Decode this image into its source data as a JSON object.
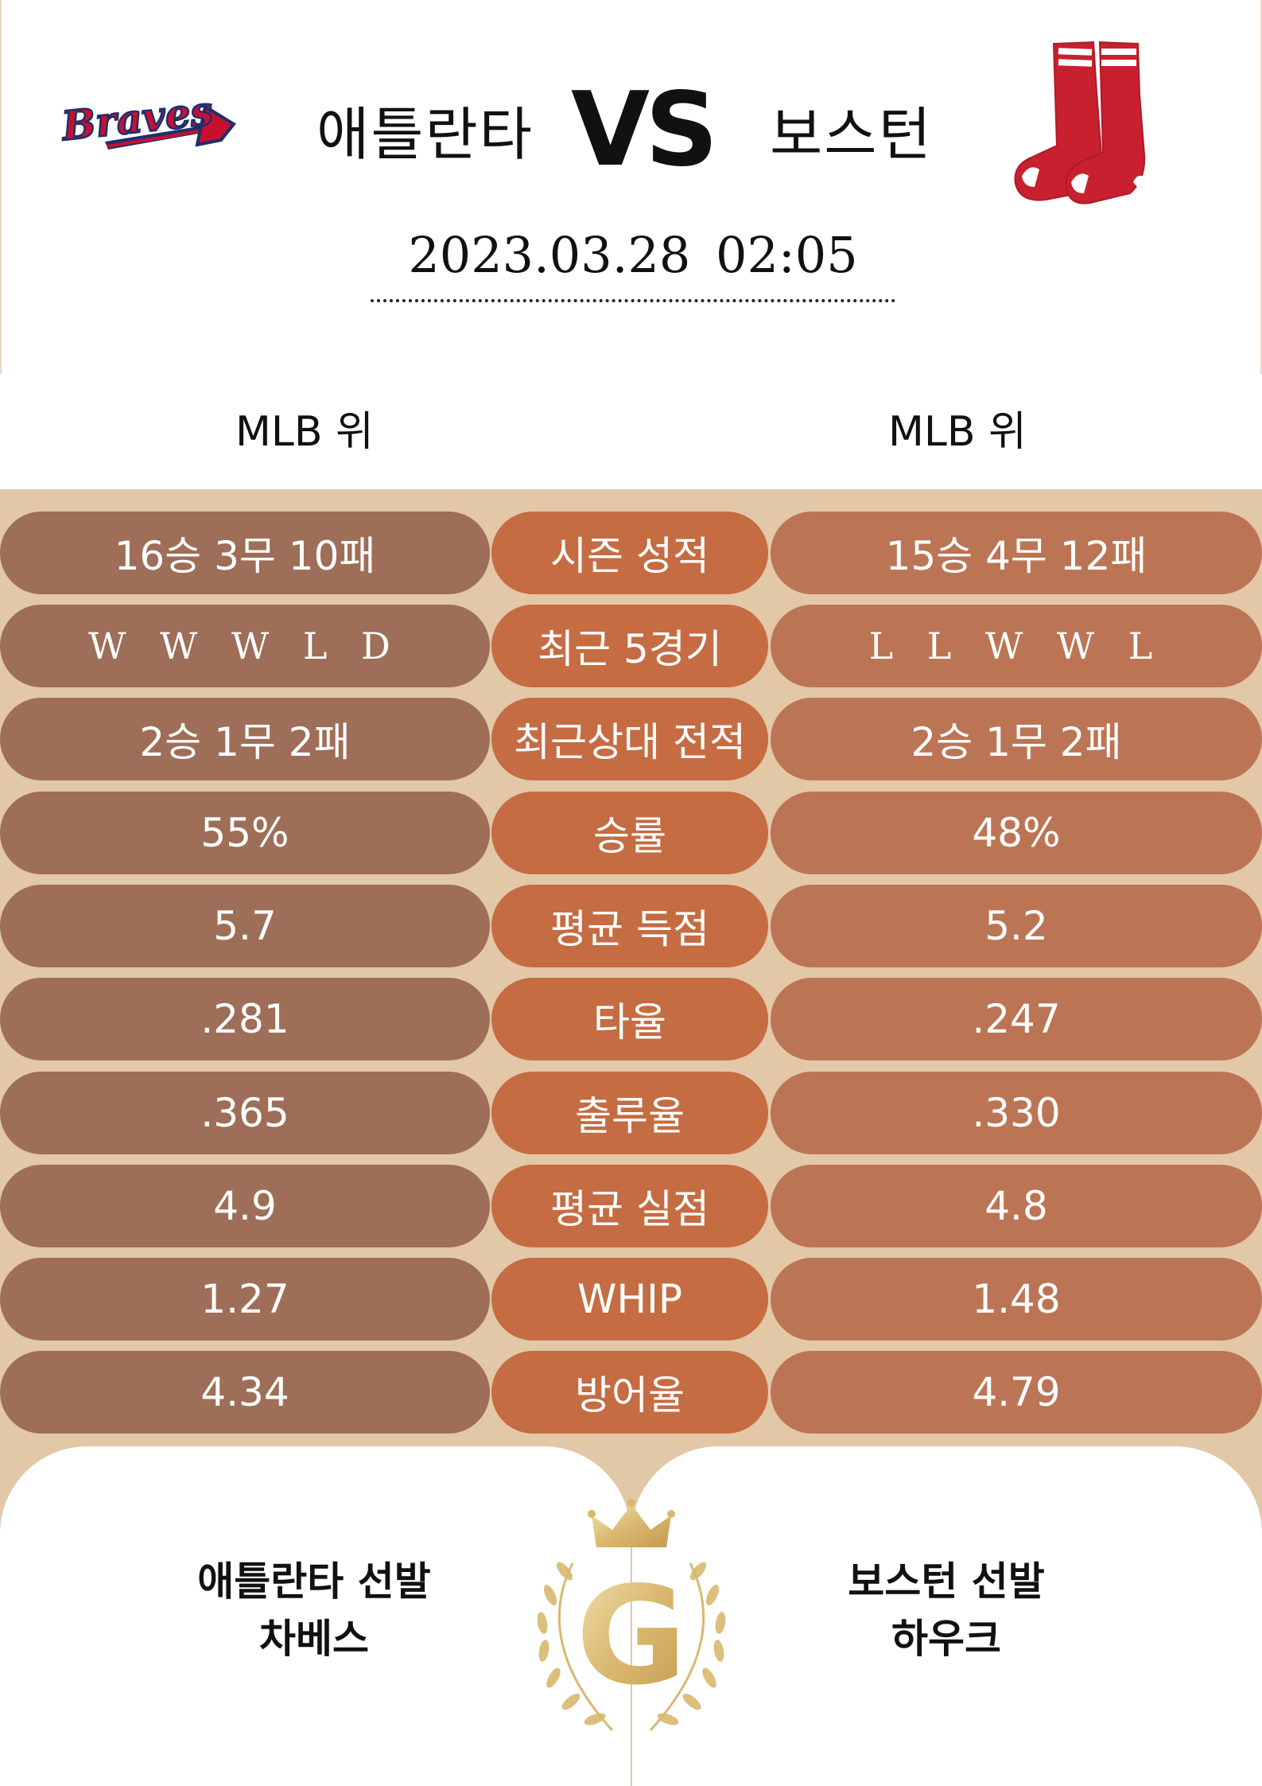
{
  "header": {
    "home_team": "애틀란타",
    "away_team": "보스턴",
    "vs_label": "VS",
    "datetime": "2023.03.28  02:05",
    "home_logo_text": "Braves"
  },
  "ranks": {
    "home": "MLB 위",
    "away": "MLB 위"
  },
  "stats": [
    {
      "home": "16승 3무 10패",
      "label": "시즌 성적",
      "away": "15승 4무 12패"
    },
    {
      "home": "W W W L D",
      "label": "최근 5경기",
      "away": "L L W W L"
    },
    {
      "home": "2승 1무 2패",
      "label": "최근상대 전적",
      "away": "2승 1무 2패"
    },
    {
      "home": "55%",
      "label": "승률",
      "away": "48%"
    },
    {
      "home": "5.7",
      "label": "평균 득점",
      "away": "5.2"
    },
    {
      "home": ".281",
      "label": "타율",
      "away": ".247"
    },
    {
      "home": ".365",
      "label": "출루율",
      "away": ".330"
    },
    {
      "home": "4.9",
      "label": "평균 실점",
      "away": "4.8"
    },
    {
      "home": "1.27",
      "label": "WHIP",
      "away": "1.48"
    },
    {
      "home": "4.34",
      "label": "방어율",
      "away": "4.79"
    }
  ],
  "pitchers": {
    "home_title": "애틀란타 선발",
    "home_name": "차베스",
    "away_title": "보스턴 선발",
    "away_name": "하우크",
    "emblem_letter": "G"
  },
  "colors": {
    "home_pill": "#9e6e58",
    "center_pill": "#c56c43",
    "away_pill": "#bb7555",
    "band": "#e2c8a6",
    "gold": "#d9b870",
    "braves_navy": "#1d2f6f",
    "braves_red": "#c8102e",
    "redsox_red": "#c8202f"
  },
  "icons": {
    "home_logo": "braves-logo-icon",
    "away_logo": "red-sox-logo-icon",
    "emblem": "crown-laurel-emblem-icon"
  }
}
